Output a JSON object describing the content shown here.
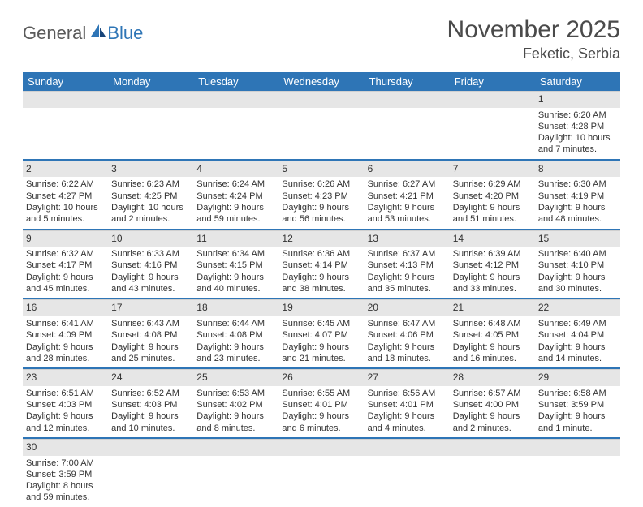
{
  "logo": {
    "general": "General",
    "blue": "Blue"
  },
  "title": "November 2025",
  "location": "Feketic, Serbia",
  "colors": {
    "header_bg": "#2e75b6",
    "header_text": "#ffffff",
    "daynum_bg": "#e6e6e6",
    "divider": "#2e75b6",
    "text": "#333333",
    "logo_gray": "#595959",
    "logo_blue": "#2e75b6",
    "background": "#ffffff"
  },
  "day_headers": [
    "Sunday",
    "Monday",
    "Tuesday",
    "Wednesday",
    "Thursday",
    "Friday",
    "Saturday"
  ],
  "weeks": [
    [
      {
        "blank": true
      },
      {
        "blank": true
      },
      {
        "blank": true
      },
      {
        "blank": true
      },
      {
        "blank": true
      },
      {
        "blank": true
      },
      {
        "n": "1",
        "sr": "Sunrise: 6:20 AM",
        "ss": "Sunset: 4:28 PM",
        "dl": "Daylight: 10 hours and 7 minutes."
      }
    ],
    [
      {
        "n": "2",
        "sr": "Sunrise: 6:22 AM",
        "ss": "Sunset: 4:27 PM",
        "dl": "Daylight: 10 hours and 5 minutes."
      },
      {
        "n": "3",
        "sr": "Sunrise: 6:23 AM",
        "ss": "Sunset: 4:25 PM",
        "dl": "Daylight: 10 hours and 2 minutes."
      },
      {
        "n": "4",
        "sr": "Sunrise: 6:24 AM",
        "ss": "Sunset: 4:24 PM",
        "dl": "Daylight: 9 hours and 59 minutes."
      },
      {
        "n": "5",
        "sr": "Sunrise: 6:26 AM",
        "ss": "Sunset: 4:23 PM",
        "dl": "Daylight: 9 hours and 56 minutes."
      },
      {
        "n": "6",
        "sr": "Sunrise: 6:27 AM",
        "ss": "Sunset: 4:21 PM",
        "dl": "Daylight: 9 hours and 53 minutes."
      },
      {
        "n": "7",
        "sr": "Sunrise: 6:29 AM",
        "ss": "Sunset: 4:20 PM",
        "dl": "Daylight: 9 hours and 51 minutes."
      },
      {
        "n": "8",
        "sr": "Sunrise: 6:30 AM",
        "ss": "Sunset: 4:19 PM",
        "dl": "Daylight: 9 hours and 48 minutes."
      }
    ],
    [
      {
        "n": "9",
        "sr": "Sunrise: 6:32 AM",
        "ss": "Sunset: 4:17 PM",
        "dl": "Daylight: 9 hours and 45 minutes."
      },
      {
        "n": "10",
        "sr": "Sunrise: 6:33 AM",
        "ss": "Sunset: 4:16 PM",
        "dl": "Daylight: 9 hours and 43 minutes."
      },
      {
        "n": "11",
        "sr": "Sunrise: 6:34 AM",
        "ss": "Sunset: 4:15 PM",
        "dl": "Daylight: 9 hours and 40 minutes."
      },
      {
        "n": "12",
        "sr": "Sunrise: 6:36 AM",
        "ss": "Sunset: 4:14 PM",
        "dl": "Daylight: 9 hours and 38 minutes."
      },
      {
        "n": "13",
        "sr": "Sunrise: 6:37 AM",
        "ss": "Sunset: 4:13 PM",
        "dl": "Daylight: 9 hours and 35 minutes."
      },
      {
        "n": "14",
        "sr": "Sunrise: 6:39 AM",
        "ss": "Sunset: 4:12 PM",
        "dl": "Daylight: 9 hours and 33 minutes."
      },
      {
        "n": "15",
        "sr": "Sunrise: 6:40 AM",
        "ss": "Sunset: 4:10 PM",
        "dl": "Daylight: 9 hours and 30 minutes."
      }
    ],
    [
      {
        "n": "16",
        "sr": "Sunrise: 6:41 AM",
        "ss": "Sunset: 4:09 PM",
        "dl": "Daylight: 9 hours and 28 minutes."
      },
      {
        "n": "17",
        "sr": "Sunrise: 6:43 AM",
        "ss": "Sunset: 4:08 PM",
        "dl": "Daylight: 9 hours and 25 minutes."
      },
      {
        "n": "18",
        "sr": "Sunrise: 6:44 AM",
        "ss": "Sunset: 4:08 PM",
        "dl": "Daylight: 9 hours and 23 minutes."
      },
      {
        "n": "19",
        "sr": "Sunrise: 6:45 AM",
        "ss": "Sunset: 4:07 PM",
        "dl": "Daylight: 9 hours and 21 minutes."
      },
      {
        "n": "20",
        "sr": "Sunrise: 6:47 AM",
        "ss": "Sunset: 4:06 PM",
        "dl": "Daylight: 9 hours and 18 minutes."
      },
      {
        "n": "21",
        "sr": "Sunrise: 6:48 AM",
        "ss": "Sunset: 4:05 PM",
        "dl": "Daylight: 9 hours and 16 minutes."
      },
      {
        "n": "22",
        "sr": "Sunrise: 6:49 AM",
        "ss": "Sunset: 4:04 PM",
        "dl": "Daylight: 9 hours and 14 minutes."
      }
    ],
    [
      {
        "n": "23",
        "sr": "Sunrise: 6:51 AM",
        "ss": "Sunset: 4:03 PM",
        "dl": "Daylight: 9 hours and 12 minutes."
      },
      {
        "n": "24",
        "sr": "Sunrise: 6:52 AM",
        "ss": "Sunset: 4:03 PM",
        "dl": "Daylight: 9 hours and 10 minutes."
      },
      {
        "n": "25",
        "sr": "Sunrise: 6:53 AM",
        "ss": "Sunset: 4:02 PM",
        "dl": "Daylight: 9 hours and 8 minutes."
      },
      {
        "n": "26",
        "sr": "Sunrise: 6:55 AM",
        "ss": "Sunset: 4:01 PM",
        "dl": "Daylight: 9 hours and 6 minutes."
      },
      {
        "n": "27",
        "sr": "Sunrise: 6:56 AM",
        "ss": "Sunset: 4:01 PM",
        "dl": "Daylight: 9 hours and 4 minutes."
      },
      {
        "n": "28",
        "sr": "Sunrise: 6:57 AM",
        "ss": "Sunset: 4:00 PM",
        "dl": "Daylight: 9 hours and 2 minutes."
      },
      {
        "n": "29",
        "sr": "Sunrise: 6:58 AM",
        "ss": "Sunset: 3:59 PM",
        "dl": "Daylight: 9 hours and 1 minute."
      }
    ],
    [
      {
        "n": "30",
        "sr": "Sunrise: 7:00 AM",
        "ss": "Sunset: 3:59 PM",
        "dl": "Daylight: 8 hours and 59 minutes."
      },
      {
        "blank": true
      },
      {
        "blank": true
      },
      {
        "blank": true
      },
      {
        "blank": true
      },
      {
        "blank": true
      },
      {
        "blank": true
      }
    ]
  ]
}
